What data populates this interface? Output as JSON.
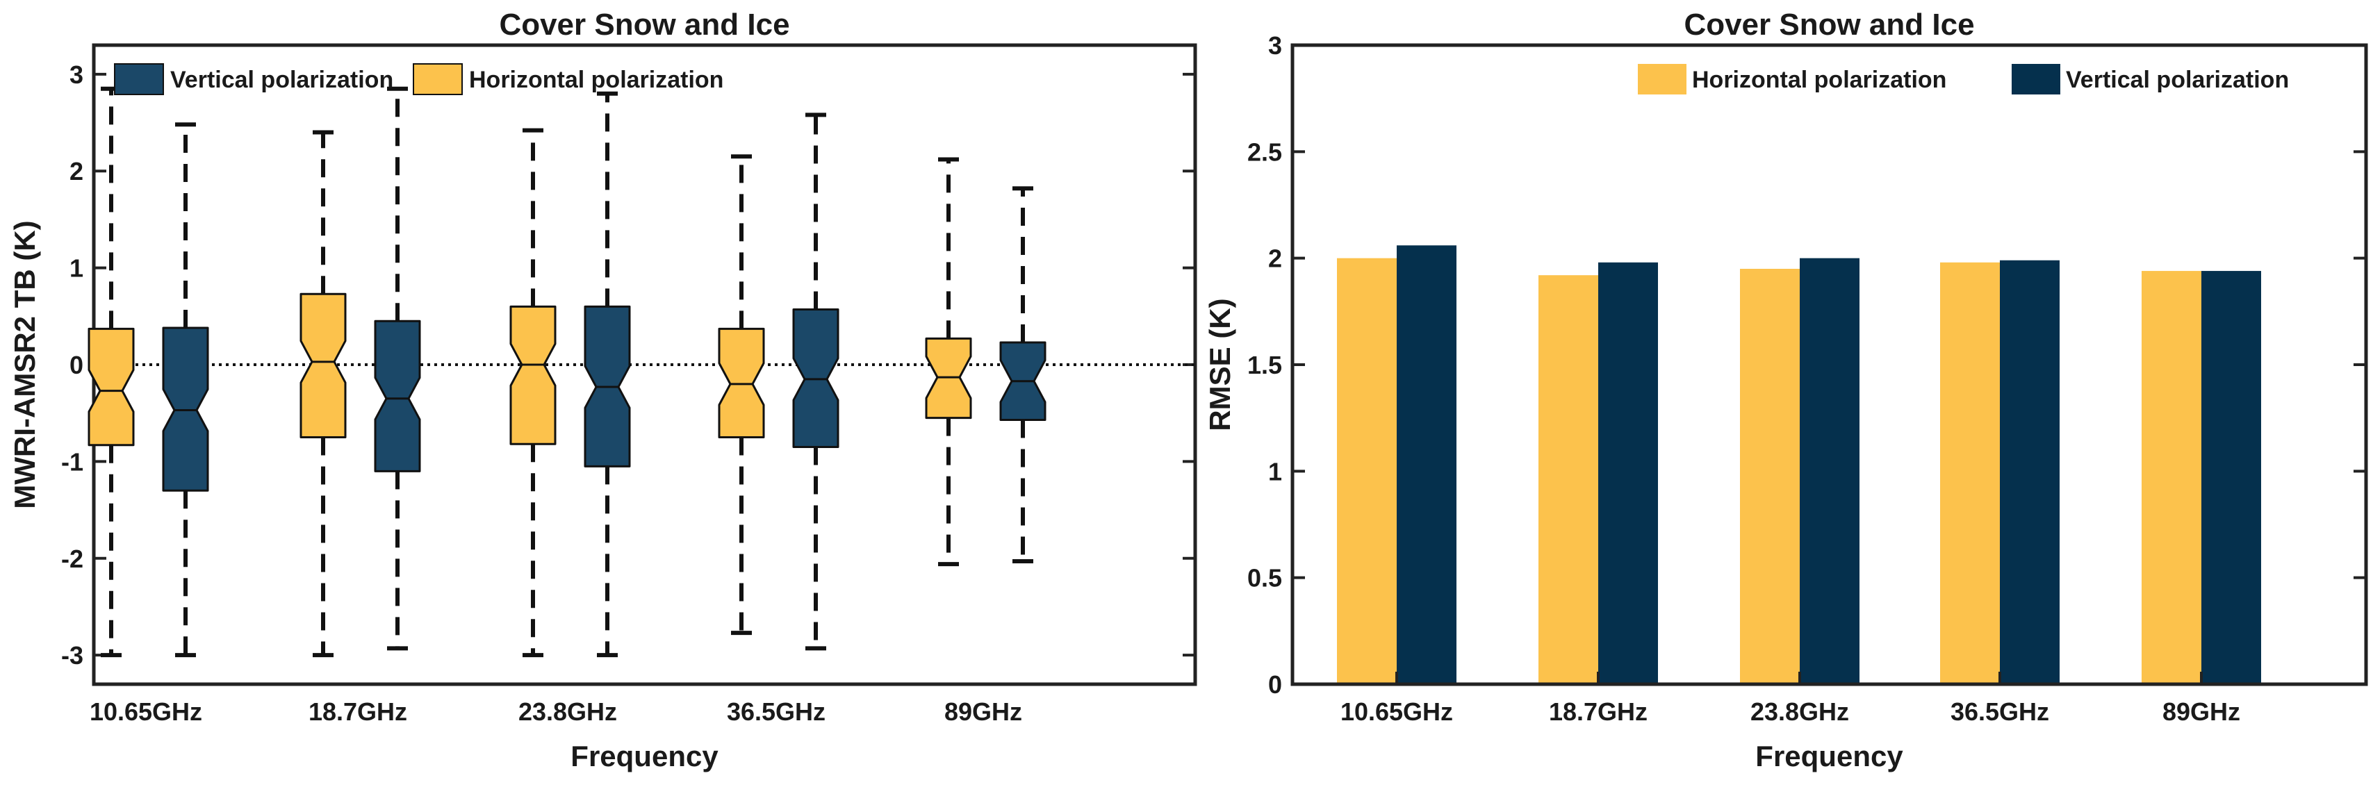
{
  "chart_data": [
    {
      "type": "box",
      "title": "Cover  Snow and Ice",
      "xlabel": "Frequency",
      "ylabel": "MWRI-AMSR2 TB (K)",
      "ylim": [
        -3.3,
        3.3
      ],
      "yticks": [
        -3,
        -2,
        -1,
        0,
        1,
        2,
        3
      ],
      "zero_line": 0,
      "categories": [
        "10.65GHz",
        "18.7GHz",
        "23.8GHz",
        "36.5GHz",
        "89GHz"
      ],
      "legend": [
        "Vertical polarization",
        "Horizontal polarization"
      ],
      "series": [
        {
          "name": "Horizontal polarization",
          "color": "#fcc24c",
          "boxes": [
            {
              "whisker_low": -3.0,
              "q1": -0.83,
              "median": -0.27,
              "q3": 0.37,
              "whisker_high": 2.85
            },
            {
              "whisker_low": -3.0,
              "q1": -0.75,
              "median": 0.03,
              "q3": 0.73,
              "whisker_high": 2.4
            },
            {
              "whisker_low": -3.0,
              "q1": -0.82,
              "median": 0.0,
              "q3": 0.6,
              "whisker_high": 2.42
            },
            {
              "whisker_low": -2.77,
              "q1": -0.75,
              "median": -0.2,
              "q3": 0.37,
              "whisker_high": 2.15
            },
            {
              "whisker_low": -2.06,
              "q1": -0.55,
              "median": -0.13,
              "q3": 0.27,
              "whisker_high": 2.12
            }
          ]
        },
        {
          "name": "Vertical polarization",
          "color": "#1b4868",
          "boxes": [
            {
              "whisker_low": -3.0,
              "q1": -1.3,
              "median": -0.47,
              "q3": 0.38,
              "whisker_high": 2.48
            },
            {
              "whisker_low": -2.93,
              "q1": -1.1,
              "median": -0.35,
              "q3": 0.45,
              "whisker_high": 2.85
            },
            {
              "whisker_low": -3.0,
              "q1": -1.05,
              "median": -0.23,
              "q3": 0.6,
              "whisker_high": 2.8
            },
            {
              "whisker_low": -2.93,
              "q1": -0.85,
              "median": -0.15,
              "q3": 0.57,
              "whisker_high": 2.58
            },
            {
              "whisker_low": -2.03,
              "q1": -0.57,
              "median": -0.17,
              "q3": 0.23,
              "whisker_high": 1.82
            }
          ]
        }
      ]
    },
    {
      "type": "bar",
      "title": "Cover  Snow and Ice",
      "xlabel": "Frequency",
      "ylabel": "RMSE (K)",
      "ylim": [
        0,
        3
      ],
      "yticks": [
        0,
        0.5,
        1,
        1.5,
        2,
        2.5,
        3
      ],
      "categories": [
        "10.65GHz",
        "18.7GHz",
        "23.8GHz",
        "36.5GHz",
        "89GHz"
      ],
      "legend": [
        "Horizontal polarization",
        "Vertical polarization"
      ],
      "series": [
        {
          "name": "Horizontal polarization",
          "color": "#fcc24c",
          "values": [
            2.0,
            1.92,
            1.95,
            1.98,
            1.94
          ]
        },
        {
          "name": "Vertical polarization",
          "color": "#05304d",
          "values": [
            2.06,
            1.98,
            2.0,
            1.99,
            1.94
          ]
        }
      ]
    }
  ]
}
